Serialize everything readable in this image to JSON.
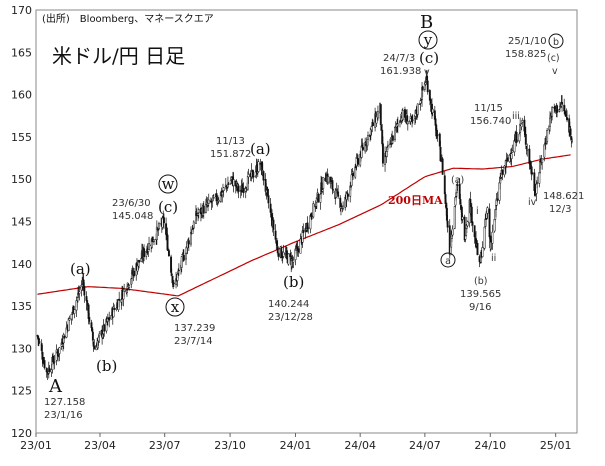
{
  "chart_data": {
    "type": "candlestick",
    "title": "米ドル/円 日足",
    "source": "(出所)　Bloomberg、マネースクエア",
    "ylim": [
      120,
      170
    ],
    "y_ticks": [
      120,
      125,
      130,
      135,
      140,
      145,
      150,
      155,
      160,
      165,
      170
    ],
    "x_ticks": [
      "23/01",
      "23/04",
      "23/07",
      "23/10",
      "24/01",
      "24/04",
      "24/07",
      "24/10",
      "25/01"
    ],
    "price_anchors": [
      {
        "t": "23/1/3",
        "v": 131.5
      },
      {
        "t": "23/1/16",
        "v": 127.158
      },
      {
        "t": "23/2/1",
        "v": 129.5
      },
      {
        "t": "23/3/8",
        "v": 137.9
      },
      {
        "t": "23/3/24",
        "v": 130.0
      },
      {
        "t": "23/4/14",
        "v": 133.5
      },
      {
        "t": "23/5/30",
        "v": 140.9
      },
      {
        "t": "23/6/30",
        "v": 145.048
      },
      {
        "t": "23/7/14",
        "v": 137.239
      },
      {
        "t": "23/8/15",
        "v": 145.8
      },
      {
        "t": "23/9/15",
        "v": 147.9
      },
      {
        "t": "23/10/3",
        "v": 150.0
      },
      {
        "t": "23/10/15",
        "v": 148.5
      },
      {
        "t": "23/11/13",
        "v": 151.872
      },
      {
        "t": "23/12/7",
        "v": 141.6
      },
      {
        "t": "23/12/28",
        "v": 140.244
      },
      {
        "t": "24/1/31",
        "v": 147.5
      },
      {
        "t": "24/2/13",
        "v": 150.5
      },
      {
        "t": "24/3/8",
        "v": 146.6
      },
      {
        "t": "24/3/27",
        "v": 151.9
      },
      {
        "t": "24/4/29",
        "v": 158.4
      },
      {
        "t": "24/5/3",
        "v": 151.9
      },
      {
        "t": "24/5/29",
        "v": 157.7
      },
      {
        "t": "24/6/14",
        "v": 156.5
      },
      {
        "t": "24/7/3",
        "v": 161.938
      },
      {
        "t": "24/7/25",
        "v": 151.9
      },
      {
        "t": "24/8/5",
        "v": 141.7
      },
      {
        "t": "24/8/15",
        "v": 149.4
      },
      {
        "t": "24/8/26",
        "v": 143.5
      },
      {
        "t": "24/9/2",
        "v": 147.2
      },
      {
        "t": "24/9/16",
        "v": 139.565
      },
      {
        "t": "24/9/27",
        "v": 146.5
      },
      {
        "t": "24/10/1",
        "v": 142.0
      },
      {
        "t": "24/10/15",
        "v": 150.0
      },
      {
        "t": "24/11/15",
        "v": 156.74
      },
      {
        "t": "24/12/3",
        "v": 148.621
      },
      {
        "t": "24/12/26",
        "v": 157.9
      },
      {
        "t": "25/1/10",
        "v": 158.825
      },
      {
        "t": "25/1/24",
        "v": 155.0
      }
    ],
    "ma200_label": "200日MA",
    "ma200_anchors": [
      {
        "t": "23/1/3",
        "v": 136.4
      },
      {
        "t": "23/3/15",
        "v": 137.3
      },
      {
        "t": "23/5/1",
        "v": 137.1
      },
      {
        "t": "23/7/20",
        "v": 136.2
      },
      {
        "t": "23/9/10",
        "v": 138.3
      },
      {
        "t": "23/11/1",
        "v": 140.4
      },
      {
        "t": "24/1/1",
        "v": 142.6
      },
      {
        "t": "24/3/1",
        "v": 144.6
      },
      {
        "t": "24/5/1",
        "v": 147.0
      },
      {
        "t": "24/7/1",
        "v": 150.3
      },
      {
        "t": "24/8/10",
        "v": 151.3
      },
      {
        "t": "24/9/20",
        "v": 151.2
      },
      {
        "t": "24/11/1",
        "v": 151.5
      },
      {
        "t": "24/12/15",
        "v": 152.4
      },
      {
        "t": "25/1/24",
        "v": 152.9
      }
    ]
  },
  "annotations": {
    "A": "A",
    "A_price": "127.158",
    "A_date": "23/1/16",
    "a1": "(a)",
    "b1": "(b)",
    "c1": "(c)",
    "w": "w",
    "x": "x",
    "x_price": "137.239",
    "x_date": "23/7/14",
    "jun30_date": "23/6/30",
    "jun30_price": "145.048",
    "nov13_date": "11/13",
    "nov13_price": "151.872",
    "a2": "(a)",
    "b2": "(b)",
    "dec28_price": "140.244",
    "dec28_date": "23/12/28",
    "B": "B",
    "y": "y",
    "c2": "(c)",
    "v1": "v",
    "jul3_date": "24/7/3",
    "jul3_price": "161.938",
    "a_circ": "a",
    "a_small": "(a)",
    "b_small": "(b)",
    "sep16_price": "139.565",
    "sep16_date": "9/16",
    "i": "i",
    "ii": "ii",
    "iii": "iii",
    "iv": "iv",
    "nov15_date": "11/15",
    "nov15_price": "156.740",
    "dec3_price": "148.621",
    "dec3_date": "12/3",
    "b_circ": "b",
    "c_small": "(c)",
    "v2": "v",
    "jan10_date": "25/1/10",
    "jan10_price": "158.825"
  }
}
